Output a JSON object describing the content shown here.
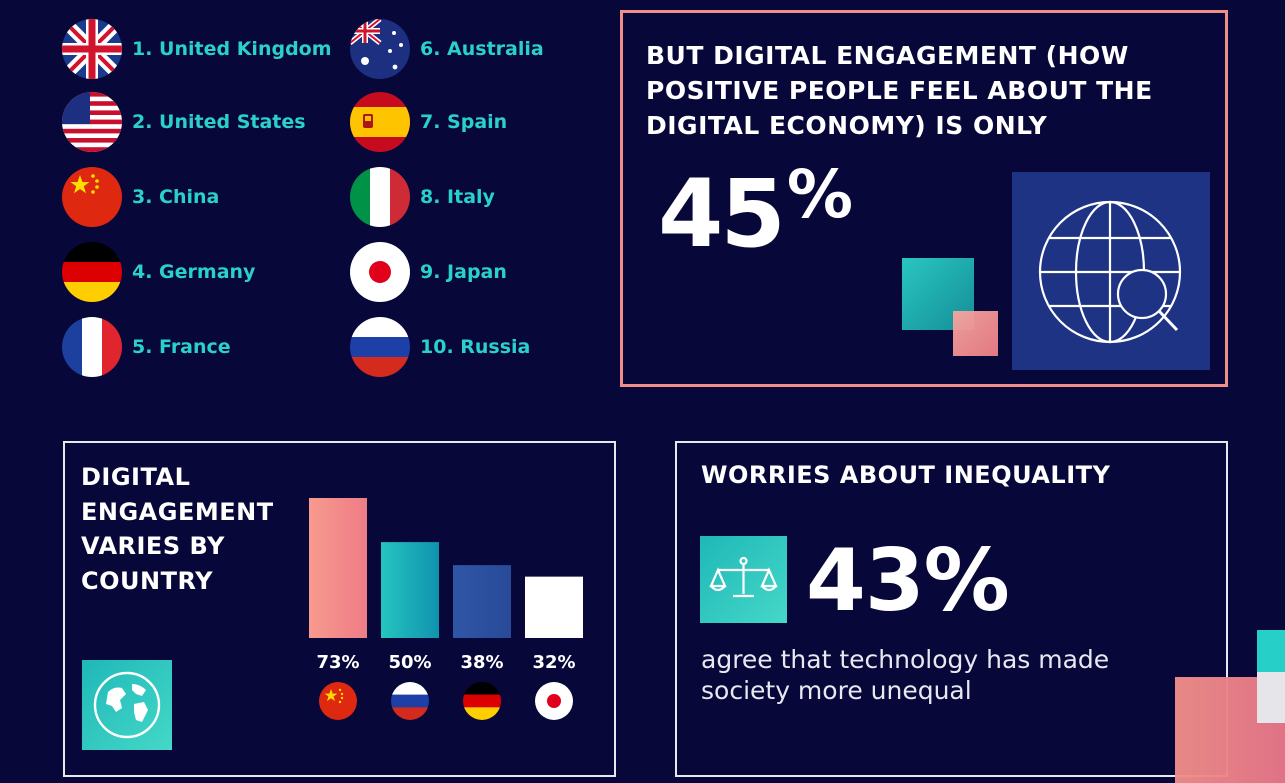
{
  "ranking": [
    {
      "label": "1. United Kingdom",
      "flag": "uk-flag-icon"
    },
    {
      "label": "2. United States",
      "flag": "us-flag-icon"
    },
    {
      "label": "3. China",
      "flag": "china-flag-icon"
    },
    {
      "label": "4. Germany",
      "flag": "germany-flag-icon"
    },
    {
      "label": "5. France",
      "flag": "france-flag-icon"
    },
    {
      "label": "6. Australia",
      "flag": "australia-flag-icon"
    },
    {
      "label": "7. Spain",
      "flag": "spain-flag-icon"
    },
    {
      "label": "8. Italy",
      "flag": "italy-flag-icon"
    },
    {
      "label": "9. Japan",
      "flag": "japan-flag-icon"
    },
    {
      "label": "10. Russia",
      "flag": "russia-flag-icon"
    }
  ],
  "engagement_panel": {
    "headline": "BUT DIGITAL ENGAGEMENT (HOW POSITIVE PEOPLE FEEL ABOUT THE DIGITAL ECONOMY) IS ONLY",
    "stat_number": "45",
    "stat_suffix": "%",
    "icon": "globe-search-icon"
  },
  "country_panel": {
    "title": "DIGITAL ENGAGEMENT VARIES BY COUNTRY",
    "icon": "globe-icon"
  },
  "inequality_panel": {
    "title": "WORRIES ABOUT INEQUALITY",
    "stat": "43%",
    "caption": "agree that technology has made society more unequal",
    "icon": "scales-icon"
  },
  "colors": {
    "background": "#07073a",
    "accent_teal": "#2ad0cc",
    "accent_salmon": "#f08e88",
    "panel_blue": "#1e3383"
  },
  "chart_data": {
    "type": "bar",
    "categories": [
      "China",
      "Russia",
      "Germany",
      "Japan"
    ],
    "values": [
      73,
      50,
      38,
      32
    ],
    "labels": [
      "73%",
      "50%",
      "38%",
      "32%"
    ],
    "flags": [
      "china-flag-icon",
      "russia-flag-icon",
      "germany-flag-icon",
      "japan-flag-icon"
    ],
    "bar_colors": [
      "#f28b82",
      "#1fbfbf",
      "#2d4f9c",
      "#ffffff"
    ],
    "ylim": [
      0,
      73
    ],
    "title": "DIGITAL ENGAGEMENT VARIES BY COUNTRY",
    "xlabel": "",
    "ylabel": ""
  }
}
